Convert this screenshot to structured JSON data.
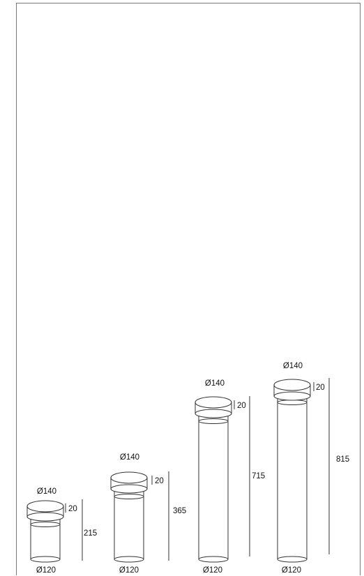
{
  "diagram": {
    "unit": "mm",
    "variants": [
      {
        "head_diameter": "Ø140",
        "head_height": "20",
        "total_height": "215",
        "base_diameter": "Ø120"
      },
      {
        "head_diameter": "Ø140",
        "head_height": "20",
        "total_height": "365",
        "base_diameter": "Ø120"
      },
      {
        "head_diameter": "Ø140",
        "head_height": "20",
        "total_height": "715",
        "base_diameter": "Ø120"
      },
      {
        "head_diameter": "Ø140",
        "head_height": "20",
        "total_height": "815",
        "base_diameter": "Ø120"
      }
    ],
    "colors": {
      "line": "#333333",
      "frame": "#777777"
    }
  }
}
